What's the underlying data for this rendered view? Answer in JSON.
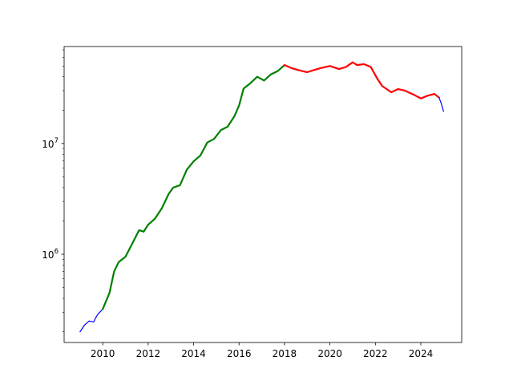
{
  "chart_data": {
    "type": "line",
    "title": "",
    "xlabel": "",
    "ylabel": "",
    "xlim": [
      2008.3,
      2025.8
    ],
    "ylim": [
      160000,
      75000000
    ],
    "yscale": "log",
    "grid": false,
    "legend": "none",
    "x_ticks": [
      {
        "value": 2010,
        "label": "2010"
      },
      {
        "value": 2012,
        "label": "2012"
      },
      {
        "value": 2014,
        "label": "2014"
      },
      {
        "value": 2016,
        "label": "2016"
      },
      {
        "value": 2018,
        "label": "2018"
      },
      {
        "value": 2020,
        "label": "2020"
      },
      {
        "value": 2022,
        "label": "2022"
      },
      {
        "value": 2024,
        "label": "2024"
      }
    ],
    "y_ticks": [
      {
        "value": 1000000,
        "base": "10",
        "exp": "6"
      },
      {
        "value": 10000000,
        "base": "10",
        "exp": "7"
      }
    ],
    "series": [
      {
        "color": "#0000ff",
        "width": 1.2,
        "x": [
          2009.0,
          2009.2,
          2009.4,
          2009.6,
          2009.7,
          2009.8,
          2010.0
        ],
        "y": [
          200000,
          230000,
          250000,
          245000,
          270000,
          290000,
          320000
        ]
      },
      {
        "color": "#008000",
        "width": 2.2,
        "x": [
          2010.0,
          2010.3,
          2010.5,
          2010.7,
          2011.0,
          2011.3,
          2011.6,
          2011.8,
          2012.0,
          2012.3,
          2012.6,
          2012.9,
          2013.1,
          2013.4,
          2013.7,
          2014.0,
          2014.3,
          2014.6,
          2014.9,
          2015.2,
          2015.5,
          2015.8,
          2016.0,
          2016.2,
          2016.5,
          2016.8,
          2017.1,
          2017.4,
          2017.7,
          2018.0
        ],
        "y": [
          320000,
          450000,
          700000,
          850000,
          950000,
          1250000,
          1650000,
          1600000,
          1850000,
          2100000,
          2600000,
          3500000,
          4000000,
          4200000,
          5800000,
          6900000,
          7800000,
          10200000,
          11000000,
          13200000,
          14200000,
          17700000,
          22000000,
          31300000,
          35000000,
          40000000,
          37000000,
          42000000,
          45000000,
          51000000
        ]
      },
      {
        "color": "#ff0000",
        "width": 2.2,
        "x": [
          2018.0,
          2018.3,
          2018.6,
          2019.0,
          2019.3,
          2019.6,
          2020.0,
          2020.4,
          2020.7,
          2021.0,
          2021.2,
          2021.5,
          2021.8,
          2022.1,
          2022.3,
          2022.7,
          2023.0,
          2023.3,
          2023.7,
          2024.0,
          2024.3,
          2024.6,
          2024.8
        ],
        "y": [
          51000000,
          48000000,
          46000000,
          44000000,
          46000000,
          48000000,
          50000000,
          47000000,
          49000000,
          54000000,
          51000000,
          52000000,
          49000000,
          38000000,
          33000000,
          29000000,
          31000000,
          30000000,
          27500000,
          25500000,
          27000000,
          28000000,
          26000000
        ]
      },
      {
        "color": "#0000ff",
        "width": 1.2,
        "x": [
          2024.8,
          2024.9,
          2025.0
        ],
        "y": [
          26000000,
          23000000,
          19500000
        ]
      }
    ]
  }
}
